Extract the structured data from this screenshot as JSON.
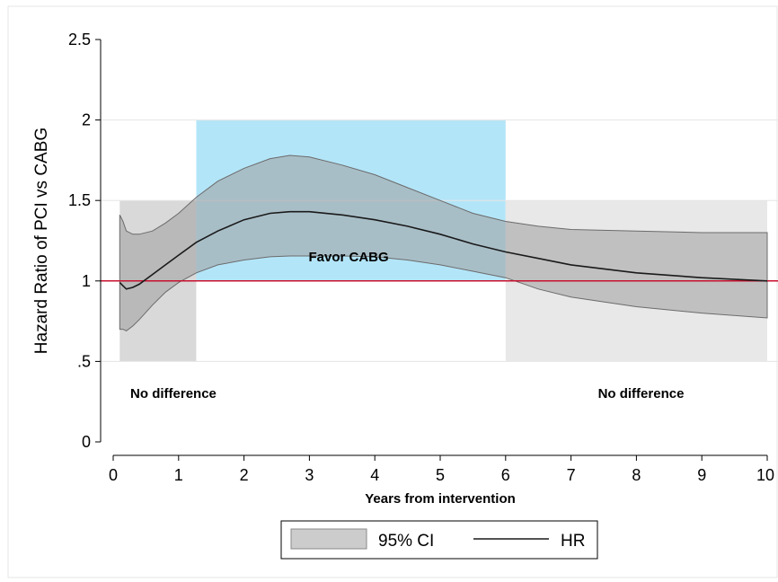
{
  "chart_data": {
    "type": "line",
    "title": "",
    "xlabel": "Years from intervention",
    "ylabel": "Hazard Ratio of PCI vs CABG",
    "xlim": [
      0,
      10
    ],
    "ylim": [
      0,
      2.5
    ],
    "x_ticks": [
      {
        "value": 0,
        "label": "0"
      },
      {
        "value": 1,
        "label": "1"
      },
      {
        "value": 2,
        "label": "2"
      },
      {
        "value": 3,
        "label": "3"
      },
      {
        "value": 4,
        "label": "4"
      },
      {
        "value": 5,
        "label": "5"
      },
      {
        "value": 6,
        "label": "6"
      },
      {
        "value": 7,
        "label": "7"
      },
      {
        "value": 8,
        "label": "8"
      },
      {
        "value": 9,
        "label": "9"
      },
      {
        "value": 10,
        "label": "10"
      }
    ],
    "y_ticks": [
      {
        "value": 0,
        "label": "0"
      },
      {
        "value": 0.5,
        "label": ".5"
      },
      {
        "value": 1,
        "label": "1"
      },
      {
        "value": 1.5,
        "label": "1.5"
      },
      {
        "value": 2,
        "label": "2"
      },
      {
        "value": 2.5,
        "label": "2.5"
      }
    ],
    "grid": true,
    "reference_line": {
      "y": 1,
      "color": "#c8102e"
    },
    "regions": [
      {
        "x0": 0.1,
        "x1": 1.27,
        "y0": 0.5,
        "y1": 1.5,
        "color": "#d9d9d9",
        "label": "No difference",
        "label_x": 0.92,
        "label_y": 0.3
      },
      {
        "x0": 1.27,
        "x1": 6.0,
        "y0": 1.0,
        "y1": 2.0,
        "color": "#b3e5f8",
        "label": "Favor CABG",
        "label_x": 3.6,
        "label_y": 1.15
      },
      {
        "x0": 6.0,
        "x1": 10.0,
        "y0": 0.5,
        "y1": 1.5,
        "color": "#e8e8e8",
        "label": "No difference",
        "label_x": 8.07,
        "label_y": 0.3
      }
    ],
    "series": [
      {
        "name": "HR",
        "type": "line",
        "color": "#1a1a1a",
        "x": [
          0.1,
          0.15,
          0.2,
          0.3,
          0.4,
          0.6,
          0.8,
          1.0,
          1.27,
          1.6,
          2.0,
          2.4,
          2.7,
          3.0,
          3.5,
          4.0,
          4.5,
          5.0,
          5.5,
          6.0,
          6.5,
          7.0,
          8.0,
          9.0,
          10.0
        ],
        "y": [
          0.99,
          0.97,
          0.95,
          0.96,
          0.98,
          1.04,
          1.1,
          1.16,
          1.24,
          1.31,
          1.38,
          1.42,
          1.43,
          1.43,
          1.41,
          1.38,
          1.34,
          1.29,
          1.23,
          1.18,
          1.14,
          1.1,
          1.05,
          1.02,
          1.0
        ]
      },
      {
        "name": "95% CI",
        "type": "band",
        "color": "#9e9e9e",
        "x": [
          0.1,
          0.15,
          0.2,
          0.3,
          0.4,
          0.6,
          0.8,
          1.0,
          1.27,
          1.6,
          2.0,
          2.4,
          2.7,
          3.0,
          3.5,
          4.0,
          4.5,
          5.0,
          5.5,
          6.0,
          6.5,
          7.0,
          8.0,
          9.0,
          10.0
        ],
        "upper": [
          1.41,
          1.37,
          1.31,
          1.29,
          1.29,
          1.31,
          1.36,
          1.42,
          1.52,
          1.62,
          1.7,
          1.76,
          1.78,
          1.77,
          1.72,
          1.66,
          1.58,
          1.5,
          1.42,
          1.37,
          1.34,
          1.32,
          1.31,
          1.3,
          1.3
        ],
        "lower": [
          0.7,
          0.7,
          0.69,
          0.72,
          0.76,
          0.85,
          0.93,
          0.99,
          1.05,
          1.1,
          1.13,
          1.15,
          1.155,
          1.155,
          1.155,
          1.15,
          1.13,
          1.1,
          1.06,
          1.02,
          0.95,
          0.9,
          0.84,
          0.8,
          0.77
        ]
      }
    ],
    "legend": {
      "position": "bottom",
      "items": [
        {
          "label": "95% CI",
          "kind": "band",
          "color": "#cccccc"
        },
        {
          "label": "HR",
          "kind": "line",
          "color": "#1a1a1a"
        }
      ]
    }
  }
}
